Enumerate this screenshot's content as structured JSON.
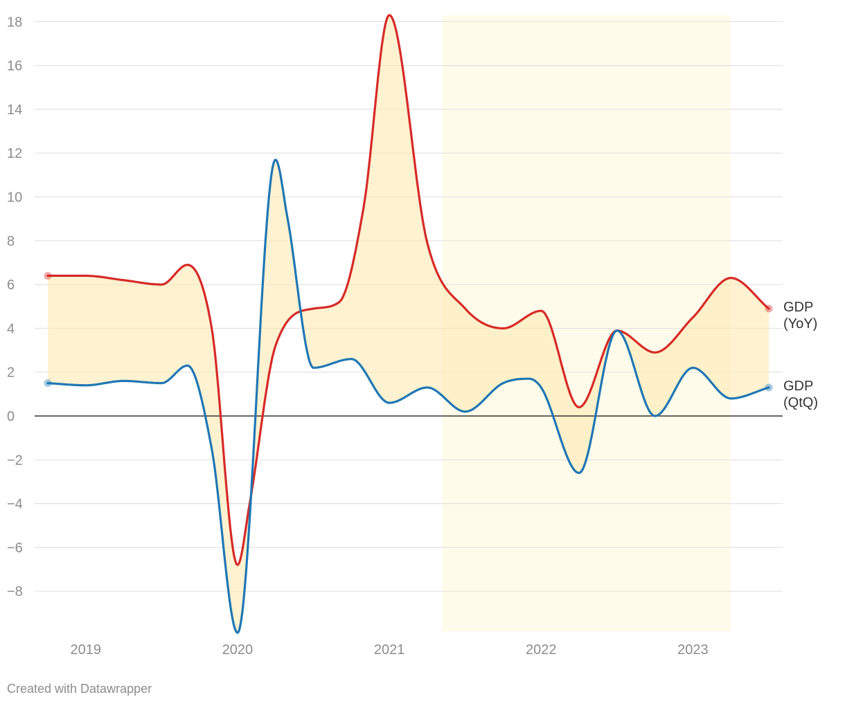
{
  "chart_data": {
    "type": "line",
    "title": "",
    "xlabel": "",
    "ylabel": "",
    "ylim": [
      -10,
      18.5
    ],
    "xlim": [
      2018.75,
      2023.5
    ],
    "yticks": [
      18,
      16,
      14,
      12,
      10,
      8,
      6,
      4,
      2,
      0,
      -2,
      -4,
      -6,
      -8
    ],
    "ytick_labels": [
      "18",
      "16",
      "14",
      "12",
      "10",
      "8",
      "6",
      "4",
      "2",
      "0",
      "−2",
      "−4",
      "−6",
      "−8"
    ],
    "xticks": [
      2019,
      2020,
      2021,
      2022,
      2023
    ],
    "xtick_labels": [
      "2019",
      "2020",
      "2021",
      "2022",
      "2023"
    ],
    "grid": true,
    "legend": "direct labels at line ends (right)",
    "highlight_range": {
      "x_from": 2021.35,
      "x_to": 2023.25
    },
    "fill_between_series": true,
    "series": [
      {
        "name": "GDP (YoY)",
        "label_lines": [
          "GDP",
          "(YoY)"
        ],
        "color": "#d62a28",
        "x": [
          2018.75,
          2019.0,
          2019.25,
          2019.5,
          2019.67,
          2019.83,
          2020.0,
          2020.08,
          2020.25,
          2020.5,
          2020.67,
          2020.83,
          2021.0,
          2021.25,
          2021.5,
          2021.75,
          2022.0,
          2022.25,
          2022.5,
          2022.75,
          2023.0,
          2023.25,
          2023.5
        ],
        "values": [
          6.4,
          6.4,
          6.2,
          6.0,
          6.9,
          4.0,
          -6.8,
          -4.0,
          3.2,
          4.9,
          5.2,
          9.5,
          18.3,
          7.9,
          4.9,
          4.0,
          4.8,
          0.4,
          3.9,
          2.9,
          4.5,
          6.3,
          4.9
        ]
      },
      {
        "name": "GDP (QtQ)",
        "label_lines": [
          "GDP",
          "(QtQ)"
        ],
        "color": "#1f77b4",
        "x": [
          2018.75,
          2019.0,
          2019.25,
          2019.5,
          2019.67,
          2019.83,
          2020.0,
          2020.25,
          2020.33,
          2020.5,
          2020.75,
          2021.0,
          2021.25,
          2021.5,
          2021.75,
          2021.92,
          2022.0,
          2022.25,
          2022.5,
          2022.75,
          2023.0,
          2023.25,
          2023.5
        ],
        "values": [
          1.5,
          1.4,
          1.6,
          1.5,
          2.3,
          -1.5,
          -9.9,
          11.7,
          9.0,
          2.2,
          2.6,
          0.6,
          1.3,
          0.2,
          1.5,
          1.7,
          1.3,
          -2.6,
          3.9,
          0.0,
          2.2,
          0.8,
          1.3
        ]
      }
    ]
  },
  "footer": {
    "credit": "Created with Datawrapper"
  }
}
